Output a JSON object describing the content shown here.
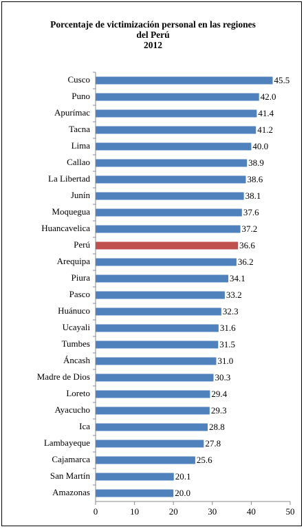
{
  "chart_data": {
    "type": "bar",
    "orientation": "horizontal",
    "title": "Porcentaje de victimización personal en las regiones del Perú",
    "subtitle": "2012",
    "categories": [
      "Cusco",
      "Puno",
      "Apurímac",
      "Tacna",
      "Lima",
      "Callao",
      "La Libertad",
      "Junín",
      "Moquegua",
      "Huancavelica",
      "Perú",
      "Arequipa",
      "Piura",
      "Pasco",
      "Huánuco",
      "Ucayali",
      "Tumbes",
      "Áncash",
      "Madre de Dios",
      "Loreto",
      "Ayacucho",
      "Ica",
      "Lambayeque",
      "Cajamarca",
      "San Martín",
      "Amazonas"
    ],
    "values": [
      45.5,
      42.0,
      41.4,
      41.2,
      40.0,
      38.9,
      38.6,
      38.1,
      37.6,
      37.2,
      36.6,
      36.2,
      34.1,
      33.2,
      32.3,
      31.6,
      31.5,
      31.0,
      30.3,
      29.4,
      29.3,
      28.8,
      27.8,
      25.6,
      20.1,
      20.0
    ],
    "value_labels": [
      "45.5",
      "42.0",
      "41.4",
      "41.2",
      "40.0",
      "38.9",
      "38.6",
      "38.1",
      "37.6",
      "37.2",
      "36.6",
      "36.2",
      "34.1",
      "33.2",
      "32.3",
      "31.6",
      "31.5",
      "31.0",
      "30.3",
      "29.4",
      "29.3",
      "28.8",
      "27.8",
      "25.6",
      "20.1",
      "20.0"
    ],
    "colors": [
      "#4f81bd",
      "#4f81bd",
      "#4f81bd",
      "#4f81bd",
      "#4f81bd",
      "#4f81bd",
      "#4f81bd",
      "#4f81bd",
      "#4f81bd",
      "#4f81bd",
      "#c0504d",
      "#4f81bd",
      "#4f81bd",
      "#4f81bd",
      "#4f81bd",
      "#4f81bd",
      "#4f81bd",
      "#4f81bd",
      "#4f81bd",
      "#4f81bd",
      "#4f81bd",
      "#4f81bd",
      "#4f81bd",
      "#4f81bd",
      "#4f81bd",
      "#4f81bd"
    ],
    "xlim": [
      0,
      50
    ],
    "xticks": [
      0,
      10,
      20,
      30,
      40,
      50
    ],
    "grid": false
  }
}
